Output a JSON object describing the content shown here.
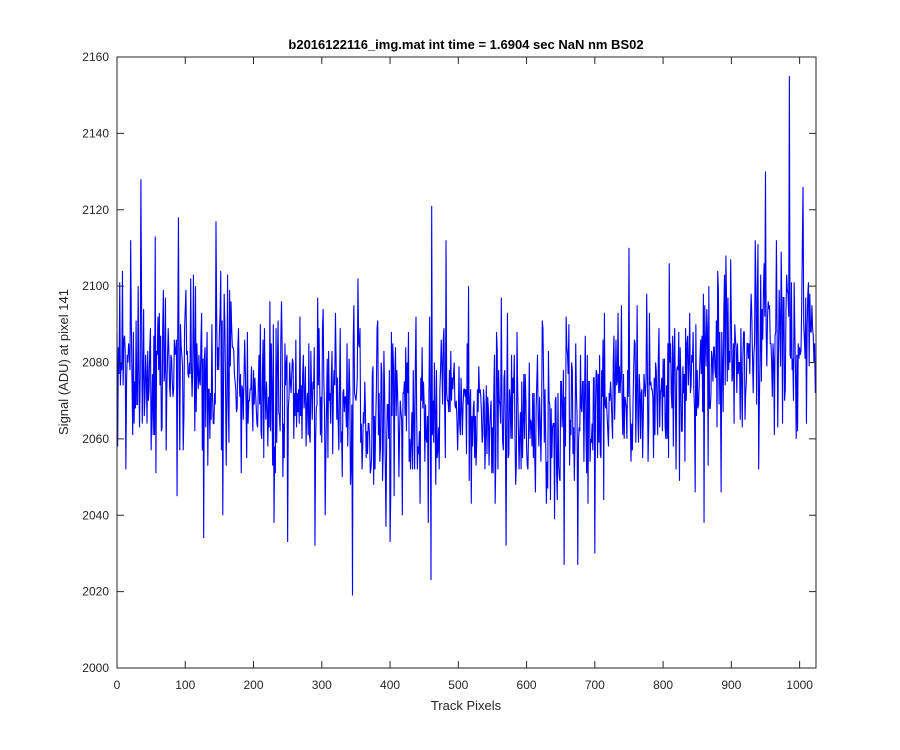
{
  "chart_data": {
    "type": "line",
    "title": "b2016122116_img.mat int time = 1.6904 sec  NaN nm BS02",
    "xlabel": "Track Pixels",
    "ylabel": "Signal (ADU) at pixel 141",
    "xlim": [
      0,
      1024
    ],
    "ylim": [
      2000,
      2160
    ],
    "xticks": [
      0,
      100,
      200,
      300,
      400,
      500,
      600,
      700,
      800,
      900,
      1000
    ],
    "yticks": [
      2000,
      2020,
      2040,
      2060,
      2080,
      2100,
      2120,
      2140,
      2160
    ],
    "grid": false,
    "legend": "none",
    "line_color": "#0000ff",
    "series": [
      {
        "n_points": 1024,
        "trend_control_x": [
          0,
          100,
          200,
          300,
          350,
          400,
          450,
          500,
          550,
          600,
          650,
          700,
          750,
          800,
          850,
          900,
          950,
          1000,
          1024
        ],
        "trend_control_y": [
          2080,
          2078,
          2074,
          2070,
          2068,
          2066,
          2066,
          2066,
          2066,
          2064,
          2064,
          2068,
          2072,
          2076,
          2079,
          2082,
          2087,
          2090,
          2090
        ],
        "noise_std_adu": 12,
        "highlighted_points": [
          {
            "x": 1,
            "y": 2058
          },
          {
            "x": 8,
            "y": 2104
          },
          {
            "x": 13,
            "y": 2052
          },
          {
            "x": 20,
            "y": 2112
          },
          {
            "x": 35,
            "y": 2128
          },
          {
            "x": 50,
            "y": 2057
          },
          {
            "x": 56,
            "y": 2113
          },
          {
            "x": 72,
            "y": 2057
          },
          {
            "x": 88,
            "y": 2045
          },
          {
            "x": 90,
            "y": 2118
          },
          {
            "x": 127,
            "y": 2034
          },
          {
            "x": 145,
            "y": 2117
          },
          {
            "x": 155,
            "y": 2040
          },
          {
            "x": 230,
            "y": 2038
          },
          {
            "x": 250,
            "y": 2033
          },
          {
            "x": 290,
            "y": 2032
          },
          {
            "x": 345,
            "y": 2019
          },
          {
            "x": 400,
            "y": 2033
          },
          {
            "x": 460,
            "y": 2023
          },
          {
            "x": 461,
            "y": 2121
          },
          {
            "x": 570,
            "y": 2032
          },
          {
            "x": 655,
            "y": 2027
          },
          {
            "x": 675,
            "y": 2027
          },
          {
            "x": 700,
            "y": 2030
          },
          {
            "x": 750,
            "y": 2110
          },
          {
            "x": 860,
            "y": 2038
          },
          {
            "x": 950,
            "y": 2130
          },
          {
            "x": 975,
            "y": 2064
          },
          {
            "x": 985,
            "y": 2155
          },
          {
            "x": 995,
            "y": 2060
          },
          {
            "x": 1005,
            "y": 2126
          },
          {
            "x": 1023,
            "y": 2072
          }
        ]
      }
    ]
  }
}
